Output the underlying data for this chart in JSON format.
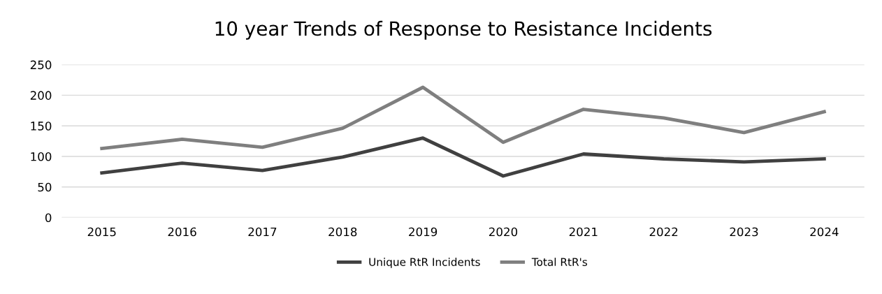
{
  "chart_data": {
    "type": "line",
    "title": "10 year Trends of Response to Resistance Incidents",
    "categories": [
      "2015",
      "2016",
      "2017",
      "2018",
      "2019",
      "2020",
      "2021",
      "2022",
      "2023",
      "2024"
    ],
    "series": [
      {
        "name": "Unique RtR Incidents",
        "color": "#404040",
        "values": [
          73,
          89,
          77,
          99,
          130,
          68,
          104,
          96,
          91,
          96
        ]
      },
      {
        "name": "Total RtR's",
        "color": "#7f7f7f",
        "values": [
          113,
          128,
          115,
          146,
          213,
          123,
          177,
          163,
          139,
          173
        ]
      }
    ],
    "ylim": [
      0,
      250
    ],
    "yticks": [
      0,
      50,
      100,
      150,
      200,
      250
    ],
    "grid": "y",
    "legend": "bottom",
    "marker": "none",
    "line_style": "solid"
  }
}
